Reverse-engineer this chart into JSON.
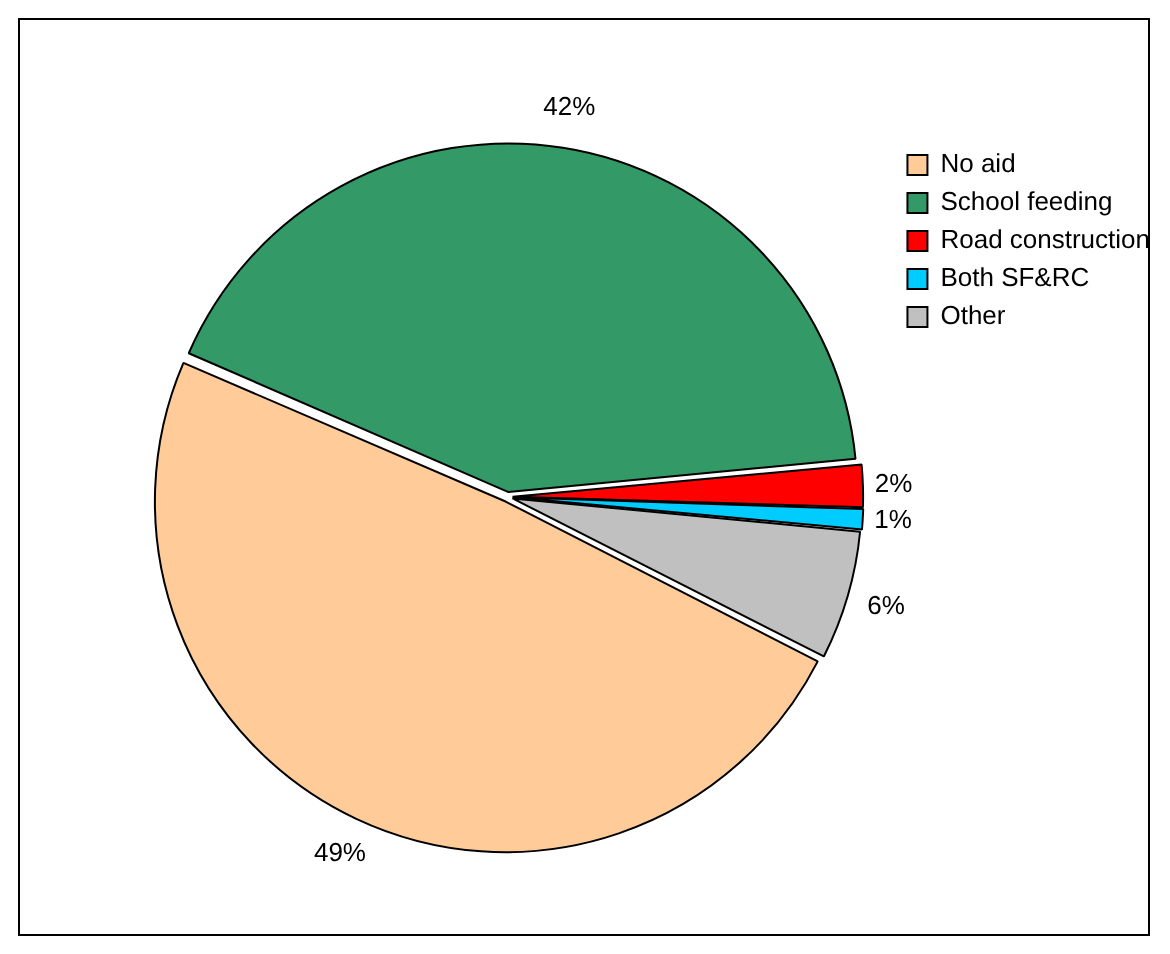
{
  "chart_data": {
    "type": "pie",
    "categories": [
      "No aid",
      "School feeding",
      "Road construction",
      "Both SF&RC",
      "Other"
    ],
    "values": [
      49,
      42,
      2,
      1,
      6
    ],
    "colors": [
      "#ffcc99",
      "#339966",
      "#ff0000",
      "#00ccff",
      "#c0c0c0"
    ],
    "value_labels": [
      "49%",
      "42%",
      "2%",
      "1%",
      "6%"
    ],
    "legend": "top right"
  }
}
